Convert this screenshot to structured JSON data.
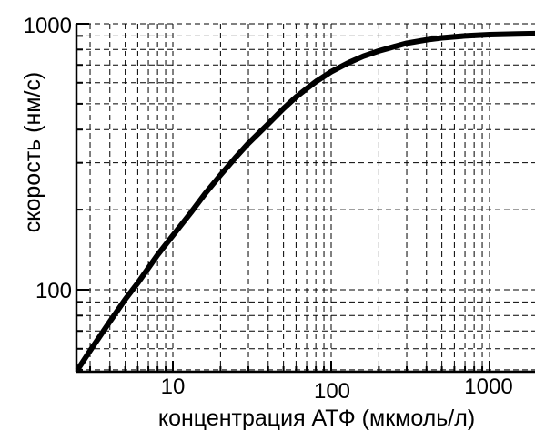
{
  "chart_data": {
    "type": "line",
    "title": "",
    "xlabel": "концентрация АТФ (мкмоль/л)",
    "ylabel": "скорость (нм/с)",
    "x_scale": "log",
    "y_scale": "log",
    "xlim": [
      2.5,
      2300
    ],
    "ylim": [
      50,
      1000
    ],
    "grid": true,
    "x_tick_labels": [
      "10",
      "100",
      "1000"
    ],
    "y_tick_labels": [
      "100",
      "1000"
    ],
    "series": [
      {
        "x": [
          2.5,
          3,
          4,
          5,
          6,
          8,
          10,
          13,
          16,
          20,
          25,
          30,
          40,
          50,
          60,
          70,
          80,
          100,
          130,
          160,
          200,
          250,
          300,
          400,
          500,
          700,
          1000,
          1500,
          2300
        ],
        "values": [
          50,
          59,
          76,
          92,
          106,
          135,
          160,
          195,
          230,
          270,
          315,
          355,
          420,
          480,
          530,
          570,
          605,
          660,
          715,
          755,
          790,
          820,
          845,
          870,
          885,
          900,
          910,
          915,
          920
        ]
      }
    ]
  }
}
